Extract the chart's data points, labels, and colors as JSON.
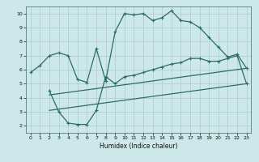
{
  "xlabel": "Humidex (Indice chaleur)",
  "bg_color": "#cce8e8",
  "grid_color": "#aacccc",
  "line_color": "#2d6b6b",
  "xlim": [
    -0.5,
    23.5
  ],
  "ylim": [
    1.5,
    10.5
  ],
  "xticks": [
    0,
    1,
    2,
    3,
    4,
    5,
    6,
    7,
    8,
    9,
    10,
    11,
    12,
    13,
    14,
    15,
    16,
    17,
    18,
    19,
    20,
    21,
    22,
    23
  ],
  "yticks": [
    2,
    3,
    4,
    5,
    6,
    7,
    8,
    9,
    10
  ],
  "upper_curve": [
    [
      0,
      5.8
    ],
    [
      1,
      6.3
    ],
    [
      2,
      7.0
    ],
    [
      3,
      7.2
    ],
    [
      4,
      7.0
    ],
    [
      5,
      5.3
    ],
    [
      6,
      5.1
    ],
    [
      7,
      7.5
    ],
    [
      8,
      5.2
    ],
    [
      9,
      8.7
    ],
    [
      10,
      10.0
    ],
    [
      11,
      9.9
    ],
    [
      12,
      10.0
    ],
    [
      13,
      9.5
    ],
    [
      14,
      9.7
    ],
    [
      15,
      10.2
    ],
    [
      16,
      9.5
    ],
    [
      17,
      9.4
    ],
    [
      18,
      9.0
    ],
    [
      19,
      8.3
    ],
    [
      20,
      7.6
    ],
    [
      21,
      6.9
    ],
    [
      22,
      7.1
    ],
    [
      23,
      6.1
    ]
  ],
  "lower_curve": [
    [
      2,
      4.5
    ],
    [
      3,
      3.0
    ],
    [
      4,
      2.2
    ],
    [
      5,
      2.1
    ],
    [
      6,
      2.1
    ],
    [
      7,
      3.1
    ],
    [
      8,
      5.5
    ],
    [
      9,
      5.0
    ],
    [
      10,
      5.5
    ],
    [
      11,
      5.6
    ],
    [
      12,
      5.8
    ],
    [
      13,
      6.0
    ],
    [
      14,
      6.2
    ],
    [
      15,
      6.4
    ],
    [
      16,
      6.5
    ],
    [
      17,
      6.8
    ],
    [
      18,
      6.8
    ],
    [
      19,
      6.6
    ],
    [
      20,
      6.6
    ],
    [
      21,
      6.8
    ],
    [
      22,
      7.0
    ],
    [
      23,
      5.0
    ]
  ],
  "diag_line1": [
    [
      2,
      3.1
    ],
    [
      23,
      5.0
    ]
  ],
  "diag_line2": [
    [
      2,
      4.2
    ],
    [
      23,
      6.1
    ]
  ]
}
